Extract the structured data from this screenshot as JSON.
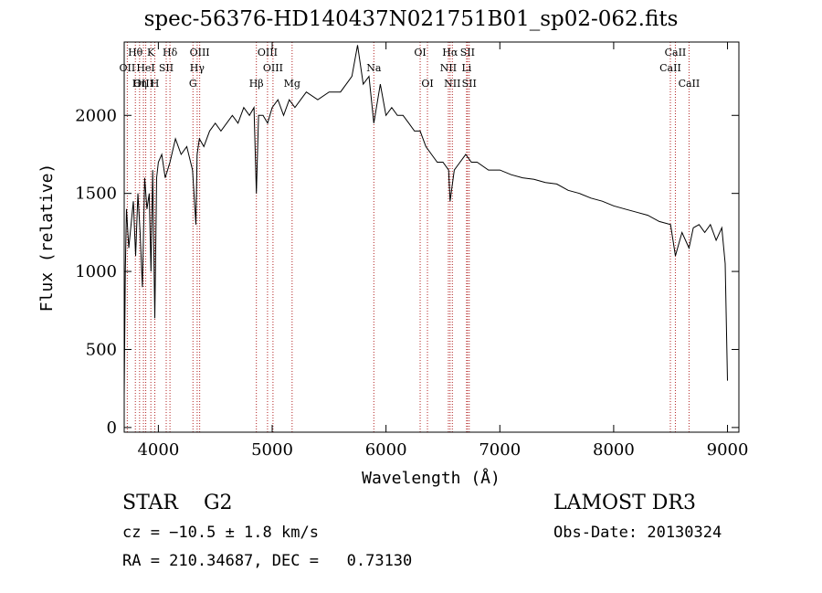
{
  "header": {
    "title": "spec-56376-HD140437N021751B01_sp02-062.fits"
  },
  "info": {
    "object_class": "STAR",
    "subclass": "G2",
    "survey": "LAMOST DR3",
    "cz": "cz = −10.5 ± 1.8 km/s",
    "obs_date": "Obs-Date: 20130324",
    "coords": "RA = 210.34687, DEC =   0.73130"
  },
  "chart_data": {
    "type": "line",
    "title": "spec-56376-HD140437N021751B01_sp02-062.fits",
    "xlabel": "Wavelength (Å)",
    "ylabel": "Flux (relative)",
    "xlim": [
      3700,
      9100
    ],
    "ylim": [
      -30,
      2470
    ],
    "x_ticks": [
      4000,
      5000,
      6000,
      7000,
      8000,
      9000
    ],
    "y_ticks": [
      0,
      500,
      1000,
      1500,
      2000
    ],
    "line_color": "#000000",
    "marker_color": "#b22222",
    "grid": false,
    "legend": "none",
    "series": [
      {
        "x": [
          3700,
          3710,
          3720,
          3740,
          3760,
          3780,
          3800,
          3820,
          3840,
          3860,
          3880,
          3900,
          3920,
          3935,
          3950,
          3969,
          3985,
          4000,
          4030,
          4060,
          4102,
          4150,
          4200,
          4250,
          4300,
          4330,
          4340,
          4360,
          4400,
          4450,
          4500,
          4550,
          4600,
          4650,
          4700,
          4750,
          4800,
          4840,
          4861,
          4880,
          4920,
          4960,
          5000,
          5050,
          5100,
          5150,
          5200,
          5300,
          5400,
          5500,
          5600,
          5700,
          5750,
          5800,
          5850,
          5893,
          5950,
          6000,
          6050,
          6100,
          6150,
          6200,
          6250,
          6300,
          6350,
          6400,
          6450,
          6500,
          6550,
          6563,
          6600,
          6650,
          6700,
          6750,
          6800,
          6900,
          7000,
          7100,
          7200,
          7300,
          7400,
          7500,
          7600,
          7700,
          7800,
          7900,
          8000,
          8100,
          8200,
          8300,
          8400,
          8500,
          8542,
          8600,
          8662,
          8700,
          8750,
          8800,
          8850,
          8900,
          8950,
          8980,
          9000
        ],
        "y": [
          200,
          1000,
          1400,
          1150,
          1300,
          1450,
          1100,
          1500,
          1250,
          900,
          1600,
          1400,
          1500,
          1000,
          1650,
          700,
          1600,
          1700,
          1750,
          1600,
          1700,
          1850,
          1750,
          1800,
          1650,
          1300,
          1750,
          1850,
          1800,
          1900,
          1950,
          1900,
          1950,
          2000,
          1950,
          2050,
          2000,
          2050,
          1500,
          2000,
          2000,
          1950,
          2050,
          2100,
          2000,
          2100,
          2050,
          2150,
          2100,
          2150,
          2150,
          2250,
          2450,
          2200,
          2250,
          1950,
          2200,
          2000,
          2050,
          2000,
          2000,
          1950,
          1900,
          1900,
          1800,
          1750,
          1700,
          1700,
          1650,
          1450,
          1650,
          1700,
          1750,
          1700,
          1700,
          1650,
          1650,
          1620,
          1600,
          1590,
          1570,
          1560,
          1520,
          1500,
          1470,
          1450,
          1420,
          1400,
          1380,
          1360,
          1320,
          1300,
          1100,
          1250,
          1150,
          1280,
          1300,
          1250,
          1300,
          1200,
          1280,
          1050,
          300
        ]
      }
    ],
    "line_markers": [
      {
        "name": "Hθ",
        "x": 3798,
        "row": 0
      },
      {
        "name": "OII",
        "x": 3727,
        "row": 1
      },
      {
        "name": "OIII",
        "x": 3869,
        "row": 2
      },
      {
        "name": "K",
        "x": 3934,
        "row": 0
      },
      {
        "name": "HeI",
        "x": 3889,
        "row": 1
      },
      {
        "name": "Hη",
        "x": 3835,
        "row": 2
      },
      {
        "name": "Hδ",
        "x": 4102,
        "row": 0
      },
      {
        "name": "SII",
        "x": 4069,
        "row": 1
      },
      {
        "name": "H",
        "x": 3969,
        "row": 2
      },
      {
        "name": "OIII",
        "x": 4363,
        "row": 0
      },
      {
        "name": "Hγ",
        "x": 4341,
        "row": 1
      },
      {
        "name": "G",
        "x": 4304,
        "row": 2
      },
      {
        "name": "OIII",
        "x": 4959,
        "row": 0
      },
      {
        "name": "OIII",
        "x": 5007,
        "row": 1
      },
      {
        "name": "Hβ",
        "x": 4861,
        "row": 2
      },
      {
        "name": "Mg",
        "x": 5175,
        "row": 2
      },
      {
        "name": "Na",
        "x": 5893,
        "row": 1
      },
      {
        "name": "OI",
        "x": 6300,
        "row": 0
      },
      {
        "name": "OI",
        "x": 6364,
        "row": 2
      },
      {
        "name": "Hα",
        "x": 6563,
        "row": 0
      },
      {
        "name": "NII",
        "x": 6548,
        "row": 1
      },
      {
        "name": "NII",
        "x": 6583,
        "row": 2
      },
      {
        "name": "SII",
        "x": 6716,
        "row": 0
      },
      {
        "name": "Li",
        "x": 6708,
        "row": 1
      },
      {
        "name": "SII",
        "x": 6731,
        "row": 2
      },
      {
        "name": "CaII",
        "x": 8542,
        "row": 0
      },
      {
        "name": "CaII",
        "x": 8498,
        "row": 1
      },
      {
        "name": "CaII",
        "x": 8662,
        "row": 2
      }
    ]
  }
}
